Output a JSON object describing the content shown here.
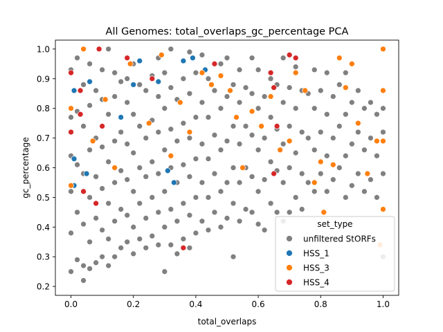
{
  "chart_data": {
    "type": "scatter",
    "title": "All Genomes: total_overlaps_gc_percentage PCA",
    "xlabel": "total_overlaps",
    "ylabel": "gc_percentage",
    "xlim": [
      -0.05,
      1.05
    ],
    "ylim": [
      0.17,
      1.03
    ],
    "xticks": [
      "0.0",
      "0.2",
      "0.4",
      "0.6",
      "0.8",
      "1.0"
    ],
    "yticks": [
      "0.2",
      "0.3",
      "0.4",
      "0.5",
      "0.6",
      "0.7",
      "0.8",
      "0.9",
      "1.0"
    ],
    "grid": false,
    "legend": {
      "title": "set_type",
      "placement": "lower-right"
    },
    "series": [
      {
        "name": "unfiltered StORFs",
        "color": "#808080",
        "points": [
          [
            0.0,
            0.25
          ],
          [
            0.0,
            0.38
          ],
          [
            0.0,
            0.52
          ],
          [
            0.0,
            0.64
          ],
          [
            0.0,
            0.77
          ],
          [
            0.0,
            0.93
          ],
          [
            0.02,
            0.29
          ],
          [
            0.02,
            0.45
          ],
          [
            0.02,
            0.61
          ],
          [
            0.02,
            0.79
          ],
          [
            0.02,
            0.97
          ],
          [
            0.04,
            0.22
          ],
          [
            0.04,
            0.27
          ],
          [
            0.04,
            0.41
          ],
          [
            0.04,
            0.58
          ],
          [
            0.04,
            0.74
          ],
          [
            0.04,
            0.88
          ],
          [
            0.06,
            0.26
          ],
          [
            0.06,
            0.35
          ],
          [
            0.06,
            0.5
          ],
          [
            0.06,
            0.66
          ],
          [
            0.06,
            0.81
          ],
          [
            0.06,
            0.95
          ],
          [
            0.08,
            0.28
          ],
          [
            0.08,
            0.43
          ],
          [
            0.08,
            0.57
          ],
          [
            0.08,
            0.7
          ],
          [
            0.08,
            0.86
          ],
          [
            0.1,
            0.3
          ],
          [
            0.1,
            0.39
          ],
          [
            0.1,
            0.53
          ],
          [
            0.1,
            0.67
          ],
          [
            0.1,
            0.83
          ],
          [
            0.1,
            0.93
          ],
          [
            0.12,
            0.27
          ],
          [
            0.12,
            0.36
          ],
          [
            0.12,
            0.48
          ],
          [
            0.12,
            0.62
          ],
          [
            0.12,
            0.78
          ],
          [
            0.12,
            1.0
          ],
          [
            0.14,
            0.3
          ],
          [
            0.14,
            0.42
          ],
          [
            0.14,
            0.55
          ],
          [
            0.14,
            0.69
          ],
          [
            0.14,
            0.84
          ],
          [
            0.14,
            0.92
          ],
          [
            0.16,
            0.33
          ],
          [
            0.16,
            0.46
          ],
          [
            0.16,
            0.59
          ],
          [
            0.16,
            0.72
          ],
          [
            0.16,
            0.89
          ],
          [
            0.18,
            0.35
          ],
          [
            0.18,
            0.44
          ],
          [
            0.18,
            0.56
          ],
          [
            0.18,
            0.68
          ],
          [
            0.18,
            0.82
          ],
          [
            0.18,
            0.9
          ],
          [
            0.2,
            0.31
          ],
          [
            0.2,
            0.4
          ],
          [
            0.2,
            0.52
          ],
          [
            0.2,
            0.65
          ],
          [
            0.2,
            0.78
          ],
          [
            0.2,
            0.95
          ],
          [
            0.22,
            0.36
          ],
          [
            0.22,
            0.48
          ],
          [
            0.22,
            0.6
          ],
          [
            0.22,
            0.74
          ],
          [
            0.22,
            0.88
          ],
          [
            0.24,
            0.33
          ],
          [
            0.24,
            0.43
          ],
          [
            0.24,
            0.57
          ],
          [
            0.24,
            0.7
          ],
          [
            0.24,
            0.86
          ],
          [
            0.26,
            0.37
          ],
          [
            0.26,
            0.5
          ],
          [
            0.26,
            0.62
          ],
          [
            0.26,
            0.76
          ],
          [
            0.26,
            0.91
          ],
          [
            0.28,
            0.34
          ],
          [
            0.28,
            0.45
          ],
          [
            0.28,
            0.58
          ],
          [
            0.28,
            0.72
          ],
          [
            0.28,
            0.84
          ],
          [
            0.28,
            0.97
          ],
          [
            0.3,
            0.25
          ],
          [
            0.3,
            0.4
          ],
          [
            0.3,
            0.52
          ],
          [
            0.3,
            0.66
          ],
          [
            0.3,
            0.8
          ],
          [
            0.3,
            0.92
          ],
          [
            0.32,
            0.34
          ],
          [
            0.32,
            0.46
          ],
          [
            0.32,
            0.6
          ],
          [
            0.32,
            0.73
          ],
          [
            0.32,
            0.87
          ],
          [
            0.32,
            1.0
          ],
          [
            0.34,
            0.31
          ],
          [
            0.34,
            0.42
          ],
          [
            0.34,
            0.55
          ],
          [
            0.34,
            0.69
          ],
          [
            0.34,
            0.83
          ],
          [
            0.36,
            0.36
          ],
          [
            0.36,
            0.48
          ],
          [
            0.36,
            0.61
          ],
          [
            0.36,
            0.75
          ],
          [
            0.36,
            0.9
          ],
          [
            0.38,
            0.33
          ],
          [
            0.38,
            0.44
          ],
          [
            0.38,
            0.57
          ],
          [
            0.38,
            0.7
          ],
          [
            0.38,
            0.85
          ],
          [
            0.38,
            0.99
          ],
          [
            0.4,
            0.38
          ],
          [
            0.4,
            0.5
          ],
          [
            0.4,
            0.63
          ],
          [
            0.4,
            0.77
          ],
          [
            0.4,
            0.92
          ],
          [
            0.42,
            0.42
          ],
          [
            0.42,
            0.55
          ],
          [
            0.42,
            0.68
          ],
          [
            0.42,
            0.82
          ],
          [
            0.42,
            0.98
          ],
          [
            0.44,
            0.39
          ],
          [
            0.44,
            0.5
          ],
          [
            0.44,
            0.63
          ],
          [
            0.44,
            0.77
          ],
          [
            0.44,
            0.9
          ],
          [
            0.46,
            0.45
          ],
          [
            0.46,
            0.58
          ],
          [
            0.46,
            0.71
          ],
          [
            0.46,
            0.86
          ],
          [
            0.48,
            0.4
          ],
          [
            0.48,
            0.52
          ],
          [
            0.48,
            0.66
          ],
          [
            0.48,
            0.8
          ],
          [
            0.48,
            0.95
          ],
          [
            0.5,
            0.43
          ],
          [
            0.5,
            0.55
          ],
          [
            0.5,
            0.69
          ],
          [
            0.5,
            0.84
          ],
          [
            0.5,
            0.97
          ],
          [
            0.52,
            0.3
          ],
          [
            0.52,
            0.48
          ],
          [
            0.52,
            0.6
          ],
          [
            0.52,
            0.74
          ],
          [
            0.52,
            0.88
          ],
          [
            0.54,
            0.42
          ],
          [
            0.54,
            0.55
          ],
          [
            0.54,
            0.68
          ],
          [
            0.54,
            0.82
          ],
          [
            0.54,
            0.93
          ],
          [
            0.56,
            0.46
          ],
          [
            0.56,
            0.6
          ],
          [
            0.56,
            0.74
          ],
          [
            0.56,
            0.87
          ],
          [
            0.58,
            0.45
          ],
          [
            0.58,
            0.57
          ],
          [
            0.58,
            0.71
          ],
          [
            0.58,
            0.85
          ],
          [
            0.58,
            0.97
          ],
          [
            0.6,
            0.41
          ],
          [
            0.6,
            0.52
          ],
          [
            0.6,
            0.66
          ],
          [
            0.6,
            0.8
          ],
          [
            0.6,
            0.93
          ],
          [
            0.62,
            0.39
          ],
          [
            0.62,
            0.56
          ],
          [
            0.62,
            0.7
          ],
          [
            0.62,
            0.84
          ],
          [
            0.64,
            0.48
          ],
          [
            0.64,
            0.62
          ],
          [
            0.64,
            0.77
          ],
          [
            0.64,
            0.9
          ],
          [
            0.66,
            0.45
          ],
          [
            0.66,
            0.59
          ],
          [
            0.66,
            0.73
          ],
          [
            0.66,
            0.88
          ],
          [
            0.68,
            0.42
          ],
          [
            0.68,
            0.55
          ],
          [
            0.68,
            0.68
          ],
          [
            0.68,
            0.82
          ],
          [
            0.68,
            0.97
          ],
          [
            0.7,
            0.45
          ],
          [
            0.7,
            0.6
          ],
          [
            0.7,
            0.74
          ],
          [
            0.7,
            0.87
          ],
          [
            0.72,
            0.5
          ],
          [
            0.72,
            0.65
          ],
          [
            0.72,
            0.8
          ],
          [
            0.72,
            0.94
          ],
          [
            0.74,
            0.46
          ],
          [
            0.74,
            0.58
          ],
          [
            0.74,
            0.72
          ],
          [
            0.74,
            0.86
          ],
          [
            0.76,
            0.55
          ],
          [
            0.76,
            0.7
          ],
          [
            0.76,
            0.85
          ],
          [
            0.78,
            0.52
          ],
          [
            0.78,
            0.66
          ],
          [
            0.78,
            0.8
          ],
          [
            0.78,
            0.93
          ],
          [
            0.8,
            0.58
          ],
          [
            0.8,
            0.72
          ],
          [
            0.8,
            0.86
          ],
          [
            0.82,
            0.52
          ],
          [
            0.82,
            0.64
          ],
          [
            0.82,
            0.78
          ],
          [
            0.82,
            0.92
          ],
          [
            0.84,
            0.56
          ],
          [
            0.84,
            0.7
          ],
          [
            0.84,
            0.84
          ],
          [
            0.86,
            0.6
          ],
          [
            0.86,
            0.74
          ],
          [
            0.86,
            0.88
          ],
          [
            0.88,
            0.5
          ],
          [
            0.88,
            0.64
          ],
          [
            0.88,
            0.78
          ],
          [
            0.88,
            0.92
          ],
          [
            0.9,
            0.54
          ],
          [
            0.9,
            0.68
          ],
          [
            0.9,
            0.82
          ],
          [
            0.92,
            0.58
          ],
          [
            0.92,
            0.72
          ],
          [
            0.92,
            0.86
          ],
          [
            0.94,
            0.52
          ],
          [
            0.94,
            0.66
          ],
          [
            0.94,
            0.8
          ],
          [
            0.96,
            0.56
          ],
          [
            0.96,
            0.7
          ],
          [
            0.96,
            0.82
          ],
          [
            0.98,
            0.5
          ],
          [
            0.98,
            0.64
          ],
          [
            0.98,
            0.78
          ],
          [
            1.0,
            0.3
          ],
          [
            1.0,
            0.46
          ],
          [
            1.0,
            0.58
          ],
          [
            1.0,
            0.72
          ],
          [
            1.0,
            0.8
          ]
        ]
      },
      {
        "name": "HSS_1",
        "color": "#1f77b4",
        "points": [
          [
            0.01,
            0.86
          ],
          [
            0.01,
            0.63
          ],
          [
            0.01,
            0.54
          ],
          [
            0.05,
            0.58
          ],
          [
            0.06,
            0.89
          ],
          [
            0.16,
            0.77
          ],
          [
            0.2,
            0.88
          ],
          [
            0.22,
            0.96
          ],
          [
            0.28,
            0.89
          ],
          [
            0.31,
            0.59
          ],
          [
            0.33,
            0.55
          ],
          [
            0.36,
            0.96
          ],
          [
            0.39,
            0.97
          ],
          [
            0.43,
            0.93
          ]
        ]
      },
      {
        "name": "HSS_3",
        "color": "#ff7f0e",
        "points": [
          [
            0.0,
            0.8
          ],
          [
            0.0,
            0.54
          ],
          [
            0.04,
            1.0
          ],
          [
            0.07,
            0.69
          ],
          [
            0.11,
            0.83
          ],
          [
            0.14,
            0.6
          ],
          [
            0.19,
            0.95
          ],
          [
            0.25,
            0.75
          ],
          [
            0.29,
            0.98
          ],
          [
            0.32,
            0.64
          ],
          [
            0.35,
            0.82
          ],
          [
            0.38,
            0.72
          ],
          [
            0.42,
            0.92
          ],
          [
            0.45,
            0.88
          ],
          [
            0.48,
            0.91
          ],
          [
            0.51,
            0.86
          ],
          [
            0.53,
            0.77
          ],
          [
            0.55,
            0.6
          ],
          [
            0.58,
            0.79
          ],
          [
            0.61,
            0.74
          ],
          [
            0.64,
            0.84
          ],
          [
            0.67,
            0.66
          ],
          [
            0.7,
            0.69
          ],
          [
            0.72,
            0.92
          ],
          [
            0.75,
            0.86
          ],
          [
            0.78,
            0.55
          ],
          [
            0.8,
            0.62
          ],
          [
            0.81,
            0.45
          ],
          [
            0.84,
            0.61
          ],
          [
            0.86,
            0.97
          ],
          [
            0.88,
            0.87
          ],
          [
            0.9,
            0.95
          ],
          [
            0.92,
            0.75
          ],
          [
            0.95,
            0.58
          ],
          [
            0.98,
            0.69
          ],
          [
            1.0,
            1.0
          ],
          [
            1.0,
            0.86
          ],
          [
            1.0,
            0.69
          ],
          [
            1.0,
            0.46
          ],
          [
            0.99,
            0.34
          ]
        ]
      },
      {
        "name": "HSS_4",
        "color": "#d62728",
        "points": [
          [
            0.0,
            0.92
          ],
          [
            0.0,
            0.72
          ],
          [
            0.03,
            0.86
          ],
          [
            0.03,
            0.78
          ],
          [
            0.04,
            0.52
          ],
          [
            0.08,
            0.48
          ],
          [
            0.1,
            0.74
          ],
          [
            0.09,
            1.0
          ],
          [
            0.18,
            0.97
          ],
          [
            0.26,
            0.9
          ],
          [
            0.36,
            0.33
          ],
          [
            0.46,
            0.95
          ],
          [
            0.64,
            0.92
          ],
          [
            0.65,
            0.87
          ],
          [
            0.66,
            0.74
          ],
          [
            0.65,
            0.58
          ],
          [
            0.7,
            0.98
          ],
          [
            0.72,
            0.97
          ]
        ]
      }
    ]
  }
}
